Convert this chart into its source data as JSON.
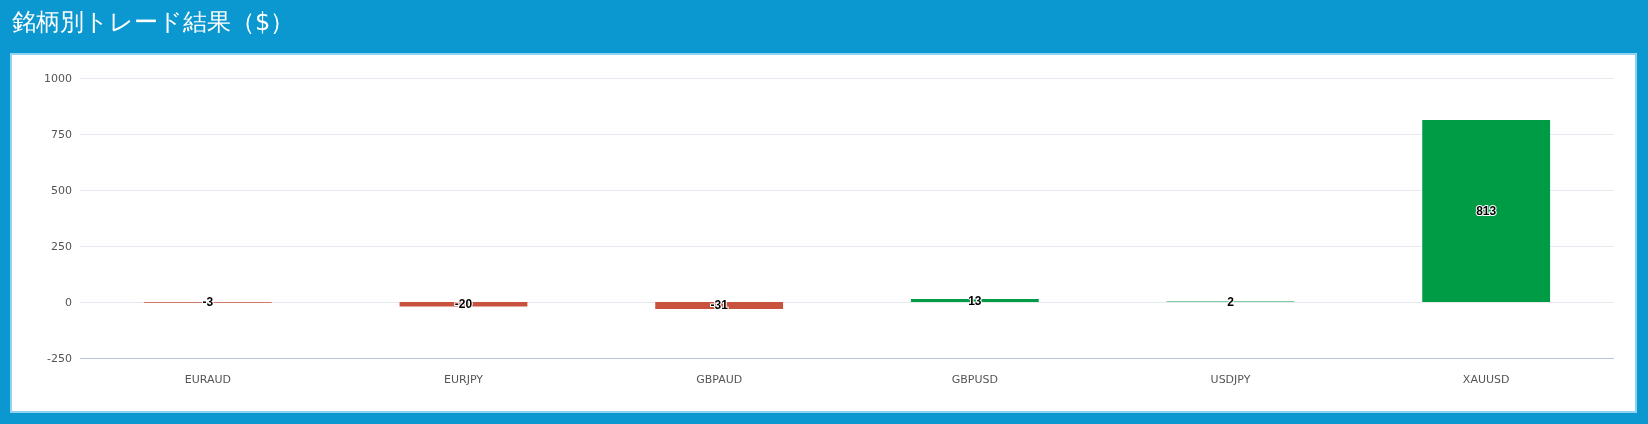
{
  "chart_data": {
    "type": "bar",
    "title": "銘柄別トレード結果（$）",
    "categories": [
      "EURAUD",
      "EURJPY",
      "GBPAUD",
      "GBPUSD",
      "USDJPY",
      "XAUUSD"
    ],
    "values": [
      -3,
      -20,
      -31,
      13,
      2,
      813
    ],
    "colors": [
      "#c9523f",
      "#c9523f",
      "#c9523f",
      "#009b45",
      "#009b45",
      "#009b45"
    ],
    "ylim": [
      -250,
      1000
    ],
    "yticks": [
      -250,
      0,
      250,
      500,
      750,
      1000
    ],
    "grid": "y",
    "data_labels": true
  }
}
